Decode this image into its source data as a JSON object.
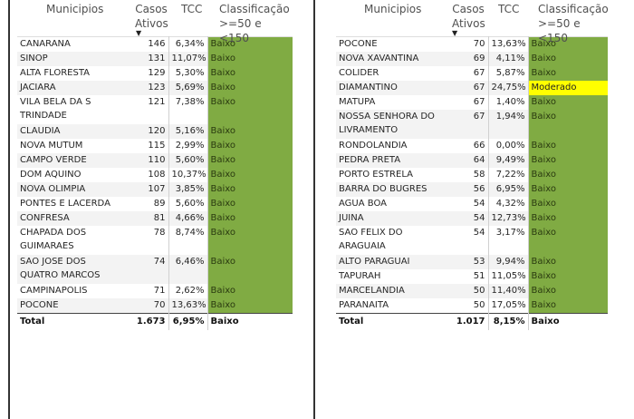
{
  "headers": {
    "municipios": "Municipios",
    "casos_line1": "Casos",
    "casos_line2": "Ativos",
    "tcc": "TCC",
    "class_line1": "Classificação",
    "class_line2": ">=50 e <150",
    "sort_glyph": "▼"
  },
  "left": {
    "rows": [
      {
        "name": "CANARANA",
        "casos": "146",
        "tcc": "6,34%",
        "cls": "Baixo"
      },
      {
        "name": "SINOP",
        "casos": "131",
        "tcc": "11,07%",
        "cls": "Baixo"
      },
      {
        "name": "ALTA FLORESTA",
        "casos": "129",
        "tcc": "5,30%",
        "cls": "Baixo"
      },
      {
        "name": "JACIARA",
        "casos": "123",
        "tcc": "5,69%",
        "cls": "Baixo"
      },
      {
        "name": "VILA BELA DA S TRINDADE",
        "casos": "121",
        "tcc": "7,38%",
        "cls": "Baixo"
      },
      {
        "name": "CLAUDIA",
        "casos": "120",
        "tcc": "5,16%",
        "cls": "Baixo"
      },
      {
        "name": "NOVA MUTUM",
        "casos": "115",
        "tcc": "2,99%",
        "cls": "Baixo"
      },
      {
        "name": "CAMPO VERDE",
        "casos": "110",
        "tcc": "5,60%",
        "cls": "Baixo"
      },
      {
        "name": "DOM AQUINO",
        "casos": "108",
        "tcc": "10,37%",
        "cls": "Baixo"
      },
      {
        "name": "NOVA OLIMPIA",
        "casos": "107",
        "tcc": "3,85%",
        "cls": "Baixo"
      },
      {
        "name": "PONTES E LACERDA",
        "casos": "89",
        "tcc": "5,60%",
        "cls": "Baixo"
      },
      {
        "name": "CONFRESA",
        "casos": "81",
        "tcc": "4,66%",
        "cls": "Baixo"
      },
      {
        "name": "CHAPADA DOS GUIMARAES",
        "casos": "78",
        "tcc": "8,74%",
        "cls": "Baixo"
      },
      {
        "name": "SAO JOSE DOS QUATRO MARCOS",
        "casos": "74",
        "tcc": "6,46%",
        "cls": "Baixo"
      },
      {
        "name": "CAMPINAPOLIS",
        "casos": "71",
        "tcc": "2,62%",
        "cls": "Baixo"
      },
      {
        "name": "POCONE",
        "casos": "70",
        "tcc": "13,63%",
        "cls": "Baixo"
      }
    ],
    "total": {
      "label": "Total",
      "casos": "1.673",
      "tcc": "6,95%",
      "cls": "Baixo"
    }
  },
  "right": {
    "rows": [
      {
        "name": "POCONE",
        "casos": "70",
        "tcc": "13,63%",
        "cls": "Baixo"
      },
      {
        "name": "NOVA XAVANTINA",
        "casos": "69",
        "tcc": "4,11%",
        "cls": "Baixo"
      },
      {
        "name": "COLIDER",
        "casos": "67",
        "tcc": "5,87%",
        "cls": "Baixo"
      },
      {
        "name": "DIAMANTINO",
        "casos": "67",
        "tcc": "24,75%",
        "cls": "Moderado"
      },
      {
        "name": "MATUPA",
        "casos": "67",
        "tcc": "1,40%",
        "cls": "Baixo"
      },
      {
        "name": "NOSSA SENHORA DO LIVRAMENTO",
        "casos": "67",
        "tcc": "1,94%",
        "cls": "Baixo"
      },
      {
        "name": "RONDOLANDIA",
        "casos": "66",
        "tcc": "0,00%",
        "cls": "Baixo"
      },
      {
        "name": "PEDRA PRETA",
        "casos": "64",
        "tcc": "9,49%",
        "cls": "Baixo"
      },
      {
        "name": "PORTO ESTRELA",
        "casos": "58",
        "tcc": "7,22%",
        "cls": "Baixo"
      },
      {
        "name": "BARRA DO BUGRES",
        "casos": "56",
        "tcc": "6,95%",
        "cls": "Baixo"
      },
      {
        "name": "AGUA BOA",
        "casos": "54",
        "tcc": "4,32%",
        "cls": "Baixo"
      },
      {
        "name": "JUINA",
        "casos": "54",
        "tcc": "12,73%",
        "cls": "Baixo"
      },
      {
        "name": "SAO FELIX DO ARAGUAIA",
        "casos": "54",
        "tcc": "3,17%",
        "cls": "Baixo"
      },
      {
        "name": "ALTO PARAGUAI",
        "casos": "53",
        "tcc": "9,94%",
        "cls": "Baixo"
      },
      {
        "name": "TAPURAH",
        "casos": "51",
        "tcc": "11,05%",
        "cls": "Baixo"
      },
      {
        "name": "MARCELANDIA",
        "casos": "50",
        "tcc": "11,40%",
        "cls": "Baixo"
      },
      {
        "name": "PARANAITA",
        "casos": "50",
        "tcc": "17,05%",
        "cls": "Baixo"
      }
    ],
    "total": {
      "label": "Total",
      "casos": "1.017",
      "tcc": "8,15%",
      "cls": "Baixo"
    }
  },
  "colors": {
    "baixo": "#80ab43",
    "moderado": "#ffff00"
  }
}
